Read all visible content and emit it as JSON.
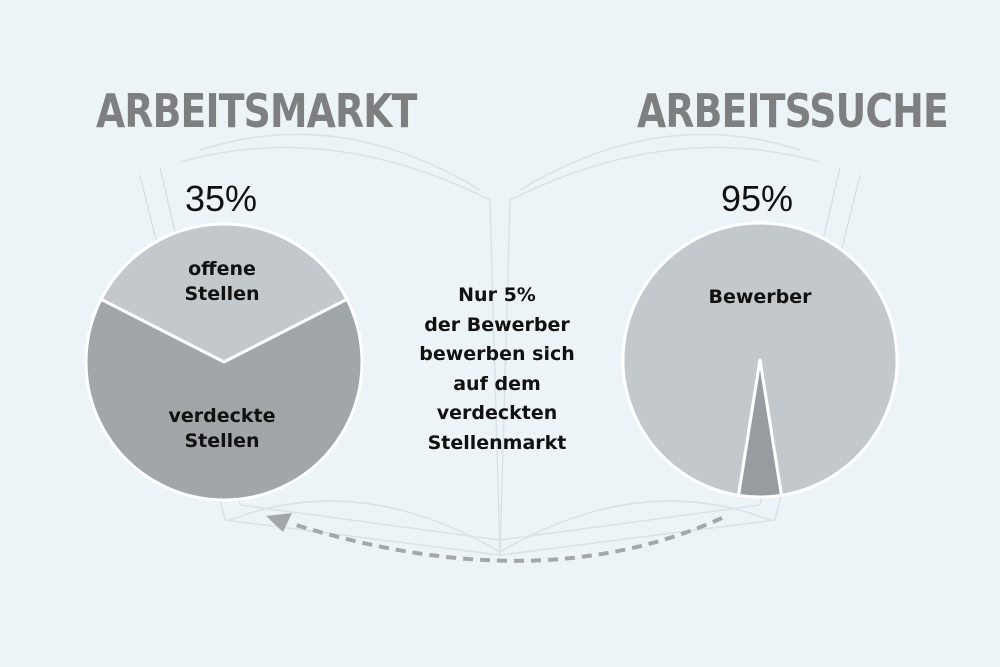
{
  "colors": {
    "background": "#edf4f7",
    "heading": "#7d7f80",
    "pie_light": "#c2c8cb",
    "pie_dark": "#a1a6a9",
    "needle": "#969c9f",
    "arrow": "#a3a7aa",
    "book_outline": "#d9e2e6"
  },
  "chart_data": [
    {
      "type": "pie",
      "title": "ARBEITSMARKT",
      "headline_value": "35%",
      "slices": [
        {
          "label": "offene Stellen",
          "value": 35,
          "color": "#c2c8cb"
        },
        {
          "label": "verdeckte Stellen",
          "value": 65,
          "color": "#a1a6a9"
        }
      ]
    },
    {
      "type": "pie",
      "title": "ARBEITSSUCHE",
      "headline_value": "95%",
      "slices": [
        {
          "label": "Bewerber",
          "value": 95,
          "color": "#c2c8cb"
        },
        {
          "label": "",
          "value": 5,
          "color": "#969c9f"
        }
      ]
    }
  ],
  "annotation": {
    "lines": [
      "Nur 5%",
      "der Bewerber",
      "bewerben sich",
      "auf dem",
      "verdeckten",
      "Stellenmarkt"
    ]
  },
  "arrow_icon": "dashed-curved-arrow-icon",
  "background_icon": "open-book-outline-icon"
}
